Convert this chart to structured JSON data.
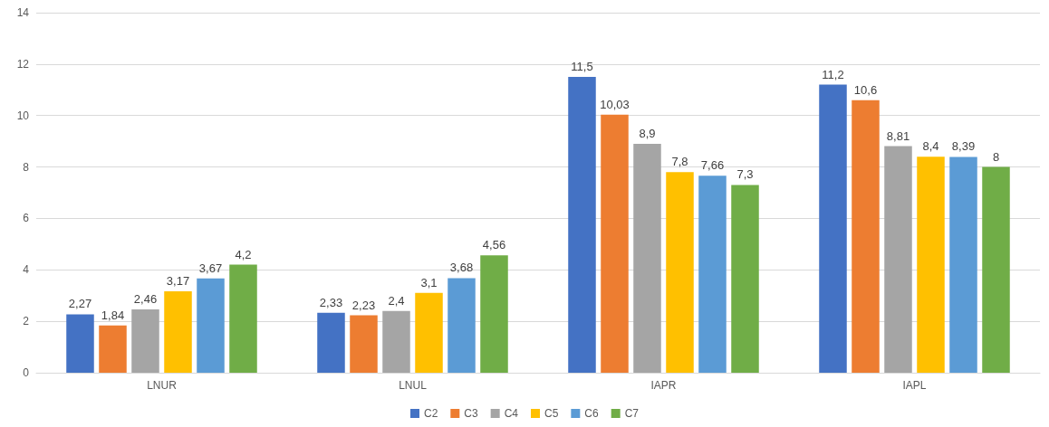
{
  "chart_data": {
    "type": "bar",
    "categories": [
      "LNUR",
      "LNUL",
      "IAPR",
      "IAPL"
    ],
    "series": [
      {
        "name": "C2",
        "color": "#4472c4",
        "values": [
          2.27,
          2.33,
          11.5,
          11.2
        ],
        "value_labels": [
          "2,27",
          "2,33",
          "11,5",
          "11,2"
        ]
      },
      {
        "name": "C3",
        "color": "#ed7d31",
        "values": [
          1.84,
          2.23,
          10.03,
          10.6
        ],
        "value_labels": [
          "1,84",
          "2,23",
          "10,03",
          "10,6"
        ]
      },
      {
        "name": "C4",
        "color": "#a5a5a5",
        "values": [
          2.46,
          2.4,
          8.9,
          8.81
        ],
        "value_labels": [
          "2,46",
          "2,4",
          "8,9",
          "8,81"
        ]
      },
      {
        "name": "C5",
        "color": "#ffc000",
        "values": [
          3.17,
          3.1,
          7.8,
          8.4
        ],
        "value_labels": [
          "3,17",
          "3,1",
          "7,8",
          "8,4"
        ]
      },
      {
        "name": "C6",
        "color": "#5b9bd5",
        "values": [
          3.67,
          3.68,
          7.66,
          8.39
        ],
        "value_labels": [
          "3,67",
          "3,68",
          "7,66",
          "8,39"
        ]
      },
      {
        "name": "C7",
        "color": "#70ad47",
        "values": [
          4.2,
          4.56,
          7.3,
          8
        ],
        "value_labels": [
          "4,2",
          "4,56",
          "7,3",
          "8"
        ]
      }
    ],
    "ylim": [
      0,
      14
    ],
    "yticks": [
      0,
      2,
      4,
      6,
      8,
      10,
      12,
      14
    ],
    "grid": "y",
    "legend": "bottom"
  }
}
